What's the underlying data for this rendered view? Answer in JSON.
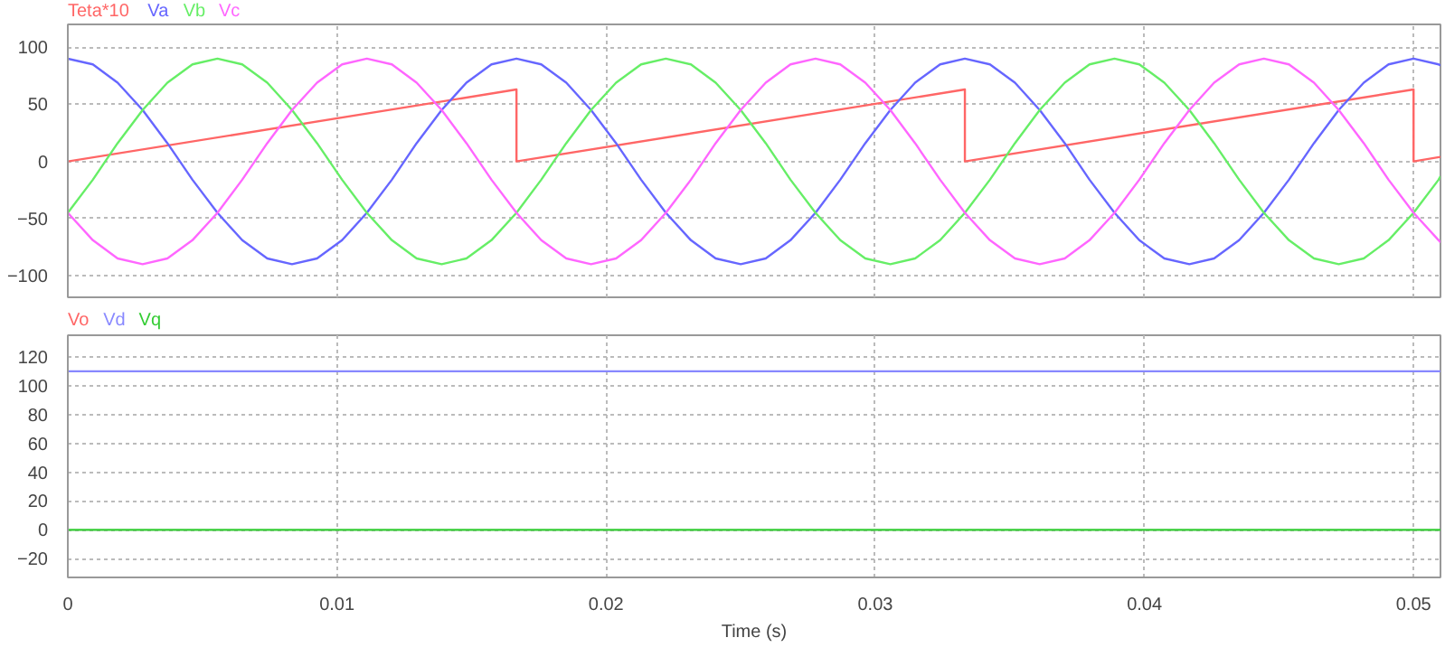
{
  "chart_data": [
    {
      "type": "line",
      "xlim": [
        0,
        0.051
      ],
      "ylim": [
        -119,
        120
      ],
      "yticks": [
        -100,
        -50,
        0,
        50,
        100
      ],
      "xticks": [
        0,
        0.01,
        0.02,
        0.03,
        0.04,
        0.05
      ],
      "grid": true,
      "tick_labels": "y",
      "x": [
        0,
        0.00093,
        0.00185,
        0.00278,
        0.0037,
        0.00463,
        0.00556,
        0.00648,
        0.00741,
        0.00833,
        0.00926,
        0.01019,
        0.01111,
        0.01204,
        0.01296,
        0.01389,
        0.01481,
        0.01574,
        0.01667,
        0.01759,
        0.01852,
        0.01944,
        0.02037,
        0.0213,
        0.02222,
        0.02315,
        0.02407,
        0.025,
        0.02593,
        0.02685,
        0.02778,
        0.0287,
        0.02963,
        0.03056,
        0.03148,
        0.03241,
        0.03333,
        0.03426,
        0.03519,
        0.03611,
        0.03704,
        0.03796,
        0.03889,
        0.03981,
        0.04074,
        0.04167,
        0.04259,
        0.04352,
        0.04444,
        0.04537,
        0.0463,
        0.04722,
        0.04815,
        0.04907,
        0.05,
        0.05093,
        0.051
      ],
      "series": [
        {
          "name": "Teta*10",
          "color": "#ff6666",
          "x": [
            0,
            0.01667,
            0.01667,
            0.03333,
            0.03333,
            0.05,
            0.05,
            0.051
          ],
          "values": [
            0,
            63,
            0,
            63,
            0,
            63,
            0,
            4
          ]
        },
        {
          "name": "Va",
          "color": "#6666ff",
          "values": [
            90,
            85,
            69,
            45,
            16,
            -16,
            -45,
            -69,
            -85,
            -90,
            -85,
            -69,
            -45,
            -16,
            16,
            45,
            69,
            85,
            90,
            85,
            69,
            45,
            16,
            -16,
            -45,
            -69,
            -85,
            -90,
            -85,
            -69,
            -45,
            -16,
            16,
            45,
            69,
            85,
            90,
            85,
            69,
            45,
            16,
            -16,
            -45,
            -69,
            -85,
            -90,
            -85,
            -69,
            -45,
            -16,
            16,
            45,
            69,
            85,
            90,
            85,
            84
          ]
        },
        {
          "name": "Vb",
          "color": "#66ee66",
          "values": [
            -45,
            -16,
            16,
            45,
            69,
            85,
            90,
            85,
            69,
            45,
            16,
            -16,
            -45,
            -69,
            -85,
            -90,
            -85,
            -69,
            -45,
            -16,
            16,
            45,
            69,
            85,
            90,
            85,
            69,
            45,
            16,
            -16,
            -45,
            -69,
            -85,
            -90,
            -85,
            -69,
            -45,
            -16,
            16,
            45,
            69,
            85,
            90,
            85,
            69,
            45,
            16,
            -16,
            -45,
            -69,
            -85,
            -90,
            -85,
            -69,
            -45,
            -16,
            -13
          ]
        },
        {
          "name": "Vc",
          "color": "#ff66ff",
          "values": [
            -45,
            -69,
            -85,
            -90,
            -85,
            -69,
            -45,
            -16,
            16,
            45,
            69,
            85,
            90,
            85,
            69,
            45,
            16,
            -16,
            -45,
            -69,
            -85,
            -90,
            -85,
            -69,
            -45,
            -16,
            16,
            45,
            69,
            85,
            90,
            85,
            69,
            45,
            16,
            -16,
            -45,
            -69,
            -85,
            -90,
            -85,
            -69,
            -45,
            -16,
            16,
            45,
            69,
            85,
            90,
            85,
            69,
            45,
            16,
            -16,
            -45,
            -69,
            -71
          ]
        }
      ]
    },
    {
      "type": "line",
      "xlabel": "Time (s)",
      "xlim": [
        0,
        0.051
      ],
      "ylim": [
        -33,
        135
      ],
      "yticks": [
        -20,
        0,
        20,
        40,
        60,
        80,
        100,
        120
      ],
      "xticks": [
        0,
        0.01,
        0.02,
        0.03,
        0.04,
        0.05
      ],
      "grid": true,
      "x": [
        0,
        0.051
      ],
      "series": [
        {
          "name": "Vo",
          "color": "#ff6666",
          "values": [
            null,
            null
          ]
        },
        {
          "name": "Vd",
          "color": "#8888ff",
          "values": [
            110,
            110
          ]
        },
        {
          "name": "Vq",
          "color": "#33cc33",
          "values": [
            0,
            0
          ]
        }
      ]
    }
  ]
}
